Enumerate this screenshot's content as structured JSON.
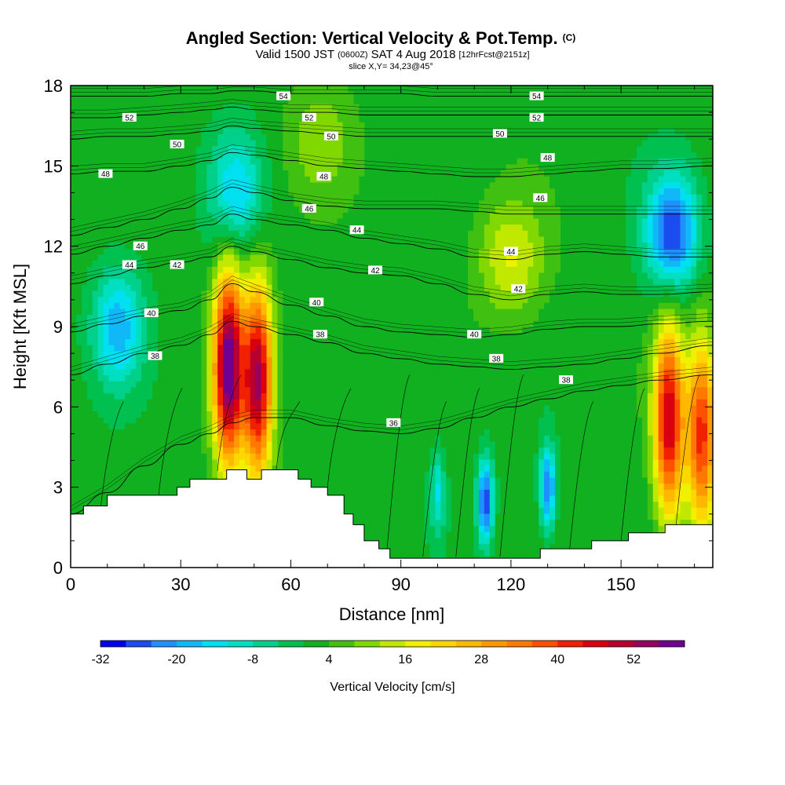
{
  "chart_data": {
    "type": "heatmap",
    "title": "Angled Section: Vertical Velocity & Pot.Temp.",
    "title_suffix": "(C)",
    "subtitle": {
      "valid": "Valid 1500 JST",
      "utc": "(0600Z)",
      "date": "SAT 4 Aug 2018",
      "forecast": "[12hrFcst@2151z]"
    },
    "slice_label": "slice X,Y= 34,23@45°",
    "xlabel": "Distance [nm]",
    "ylabel": "Height [Kft MSL]",
    "xlim": [
      0,
      175
    ],
    "ylim": [
      0,
      18
    ],
    "x_ticks": [
      "0",
      "30",
      "60",
      "90",
      "120",
      "150"
    ],
    "y_ticks": [
      "0",
      "3",
      "6",
      "9",
      "12",
      "15",
      "18"
    ],
    "colorbar": {
      "label": "Vertical Velocity [cm/s]",
      "tick_labels": [
        "-32",
        "-20",
        "-8",
        "4",
        "16",
        "28",
        "40",
        "52"
      ],
      "tick_values": [
        -32,
        -20,
        -8,
        4,
        16,
        28,
        40,
        52
      ],
      "levels": [
        -32,
        -28,
        -24,
        -20,
        -16,
        -12,
        -8,
        -4,
        0,
        4,
        8,
        12,
        16,
        20,
        24,
        28,
        32,
        36,
        40,
        44,
        48,
        52,
        56,
        60
      ],
      "colors": [
        "#0000f0",
        "#1a4cf0",
        "#1e90ff",
        "#10b8f8",
        "#00e0f0",
        "#00e0c0",
        "#00d08a",
        "#00c050",
        "#10b020",
        "#40c010",
        "#80d800",
        "#c0e800",
        "#f0f000",
        "#ffd700",
        "#ffb800",
        "#ff9800",
        "#ff7800",
        "#ff5000",
        "#f02000",
        "#d80010",
        "#b80030",
        "#980060",
        "#700090"
      ]
    },
    "features": [
      {
        "kind": "updraft",
        "x": 43,
        "z": 7.5,
        "w_cm_s": 58
      },
      {
        "kind": "updraft",
        "x": 51,
        "z": 7.0,
        "w_cm_s": 50
      },
      {
        "kind": "updraft",
        "x": 163,
        "z": 5.5,
        "w_cm_s": 46
      },
      {
        "kind": "updraft",
        "x": 172,
        "z": 5.0,
        "w_cm_s": 40
      },
      {
        "kind": "updraft",
        "x": 120,
        "z": 11.5,
        "w_cm_s": 14
      },
      {
        "kind": "updraft",
        "x": 68,
        "z": 16.0,
        "w_cm_s": 8
      },
      {
        "kind": "downdraft",
        "x": 164,
        "z": 12.5,
        "w_cm_s": -30
      },
      {
        "kind": "downdraft",
        "x": 13,
        "z": 9.0,
        "w_cm_s": -20
      },
      {
        "kind": "downdraft",
        "x": 45,
        "z": 14.0,
        "w_cm_s": -18
      },
      {
        "kind": "downdraft",
        "x": 113,
        "z": 2.5,
        "w_cm_s": -30
      },
      {
        "kind": "downdraft",
        "x": 130,
        "z": 3.0,
        "w_cm_s": -26
      },
      {
        "kind": "downdraft",
        "x": 100,
        "z": 2.8,
        "w_cm_s": -14
      }
    ],
    "terrain_kft": [
      {
        "x": 0,
        "h": 2.0
      },
      {
        "x": 3.5,
        "h": 2.0
      },
      {
        "x": 3.5,
        "h": 2.3
      },
      {
        "x": 10,
        "h": 2.3
      },
      {
        "x": 10,
        "h": 2.7
      },
      {
        "x": 29,
        "h": 2.7
      },
      {
        "x": 29,
        "h": 3.0
      },
      {
        "x": 32.5,
        "h": 3.0
      },
      {
        "x": 32.5,
        "h": 3.3
      },
      {
        "x": 42.5,
        "h": 3.3
      },
      {
        "x": 42.5,
        "h": 3.65
      },
      {
        "x": 48,
        "h": 3.65
      },
      {
        "x": 48,
        "h": 3.3
      },
      {
        "x": 52,
        "h": 3.3
      },
      {
        "x": 52,
        "h": 3.65
      },
      {
        "x": 62,
        "h": 3.65
      },
      {
        "x": 62,
        "h": 3.3
      },
      {
        "x": 65.5,
        "h": 3.3
      },
      {
        "x": 65.5,
        "h": 3.0
      },
      {
        "x": 70,
        "h": 3.0
      },
      {
        "x": 70,
        "h": 2.7
      },
      {
        "x": 74.5,
        "h": 2.7
      },
      {
        "x": 74.5,
        "h": 2.0
      },
      {
        "x": 77,
        "h": 2.0
      },
      {
        "x": 77,
        "h": 1.6
      },
      {
        "x": 80,
        "h": 1.6
      },
      {
        "x": 80,
        "h": 1.0
      },
      {
        "x": 84,
        "h": 1.0
      },
      {
        "x": 84,
        "h": 0.7
      },
      {
        "x": 87,
        "h": 0.7
      },
      {
        "x": 87,
        "h": 0.35
      },
      {
        "x": 128,
        "h": 0.35
      },
      {
        "x": 128,
        "h": 0.7
      },
      {
        "x": 142,
        "h": 0.7
      },
      {
        "x": 142,
        "h": 1.0
      },
      {
        "x": 152,
        "h": 1.0
      },
      {
        "x": 152,
        "h": 1.3
      },
      {
        "x": 162,
        "h": 1.3
      },
      {
        "x": 162,
        "h": 1.6
      },
      {
        "x": 175,
        "h": 1.6
      }
    ],
    "theta_contours": [
      {
        "value": 36,
        "label": "36",
        "y": [
          2.0,
          2.8,
          3.8,
          4.6,
          5.0,
          5.4,
          5.6,
          5.6,
          5.3,
          5.1,
          5.0,
          5.2,
          5.6,
          6.0,
          6.3,
          6.6,
          6.8,
          7.0,
          7.2
        ]
      },
      {
        "value": 38,
        "label": "38",
        "y": [
          7.2,
          7.6,
          8.0,
          8.3,
          8.7,
          9.2,
          9.0,
          8.7,
          8.4,
          8.0,
          7.8,
          7.6,
          7.5,
          7.4,
          7.5,
          7.6,
          7.8,
          8.0,
          8.3
        ]
      },
      {
        "value": 40,
        "label": "40",
        "y": [
          8.8,
          9.1,
          9.4,
          9.6,
          10.0,
          10.6,
          10.3,
          9.8,
          9.4,
          9.0,
          8.8,
          8.7,
          8.6,
          8.7,
          8.9,
          9.0,
          9.0,
          9.1,
          9.2
        ]
      },
      {
        "value": 42,
        "label": "42",
        "y": [
          10.6,
          10.9,
          11.2,
          11.4,
          11.6,
          12.0,
          11.8,
          11.5,
          11.2,
          11.0,
          10.9,
          10.6,
          10.2,
          10.0,
          10.2,
          10.3,
          10.2,
          10.2,
          10.3
        ]
      },
      {
        "value": 44,
        "label": "44",
        "y": [
          11.7,
          12.0,
          12.3,
          12.6,
          12.8,
          13.2,
          13.0,
          12.8,
          12.6,
          12.3,
          12.1,
          11.9,
          11.6,
          11.5,
          11.7,
          11.8,
          11.7,
          11.6,
          11.6
        ]
      },
      {
        "value": 46,
        "label": "46",
        "y": [
          12.4,
          12.7,
          13.0,
          13.4,
          13.8,
          14.2,
          14.0,
          13.7,
          13.5,
          13.4,
          13.4,
          13.4,
          13.3,
          13.2,
          13.2,
          13.2,
          13.2,
          13.2,
          13.2
        ]
      },
      {
        "value": 48,
        "label": "48",
        "y": [
          14.7,
          14.8,
          14.8,
          15.0,
          15.2,
          15.5,
          15.4,
          15.2,
          15.0,
          14.9,
          14.8,
          14.7,
          14.6,
          14.6,
          14.7,
          14.8,
          14.9,
          14.9,
          15.0
        ]
      },
      {
        "value": 50,
        "label": "50",
        "y": [
          16.0,
          16.1,
          16.1,
          16.2,
          16.3,
          16.5,
          16.4,
          16.3,
          16.2,
          16.1,
          16.1,
          16.1,
          16.1,
          16.1,
          16.1,
          16.1,
          16.1,
          16.1,
          16.1
        ]
      },
      {
        "value": 52,
        "label": "52",
        "y": [
          16.8,
          16.8,
          16.9,
          17.0,
          17.1,
          17.2,
          17.1,
          17.0,
          17.0,
          16.9,
          16.9,
          16.9,
          16.9,
          16.9,
          16.9,
          16.9,
          16.9,
          16.9,
          16.9
        ]
      },
      {
        "value": 54,
        "label": "54",
        "y": [
          17.6,
          17.6,
          17.6,
          17.7,
          17.7,
          17.8,
          17.8,
          17.7,
          17.7,
          17.7,
          17.7,
          17.6,
          17.6,
          17.6,
          17.6,
          17.6,
          17.6,
          17.6,
          17.6
        ]
      }
    ],
    "theta_x": [
      0,
      10,
      20,
      30,
      38,
      44,
      50,
      60,
      70,
      80,
      90,
      100,
      110,
      120,
      130,
      140,
      150,
      160,
      175
    ],
    "contour_labels": [
      {
        "text": "54",
        "x": 58,
        "z": 17.6
      },
      {
        "text": "54",
        "x": 127,
        "z": 17.6
      },
      {
        "text": "52",
        "x": 16,
        "z": 16.8
      },
      {
        "text": "52",
        "x": 65,
        "z": 16.8
      },
      {
        "text": "52",
        "x": 127,
        "z": 16.8
      },
      {
        "text": "50",
        "x": 29,
        "z": 15.8
      },
      {
        "text": "50",
        "x": 71,
        "z": 16.1
      },
      {
        "text": "50",
        "x": 117,
        "z": 16.2
      },
      {
        "text": "48",
        "x": 9.5,
        "z": 14.7
      },
      {
        "text": "48",
        "x": 69,
        "z": 14.6
      },
      {
        "text": "48",
        "x": 130,
        "z": 15.3
      },
      {
        "text": "46",
        "x": 19,
        "z": 12.0
      },
      {
        "text": "46",
        "x": 65,
        "z": 13.4
      },
      {
        "text": "46",
        "x": 128,
        "z": 13.8
      },
      {
        "text": "44",
        "x": 16,
        "z": 11.3
      },
      {
        "text": "44",
        "x": 78,
        "z": 12.6
      },
      {
        "text": "44",
        "x": 120,
        "z": 11.8
      },
      {
        "text": "42",
        "x": 29,
        "z": 11.3
      },
      {
        "text": "42",
        "x": 83,
        "z": 11.1
      },
      {
        "text": "42",
        "x": 122,
        "z": 10.4
      },
      {
        "text": "40",
        "x": 22,
        "z": 9.5
      },
      {
        "text": "40",
        "x": 67,
        "z": 9.9
      },
      {
        "text": "40",
        "x": 110,
        "z": 8.7
      },
      {
        "text": "38",
        "x": 23,
        "z": 7.9
      },
      {
        "text": "38",
        "x": 68,
        "z": 8.7
      },
      {
        "text": "38",
        "x": 116,
        "z": 7.8
      },
      {
        "text": "38",
        "x": 135,
        "z": 7.0
      },
      {
        "text": "36",
        "x": 88,
        "z": 5.4
      }
    ]
  }
}
